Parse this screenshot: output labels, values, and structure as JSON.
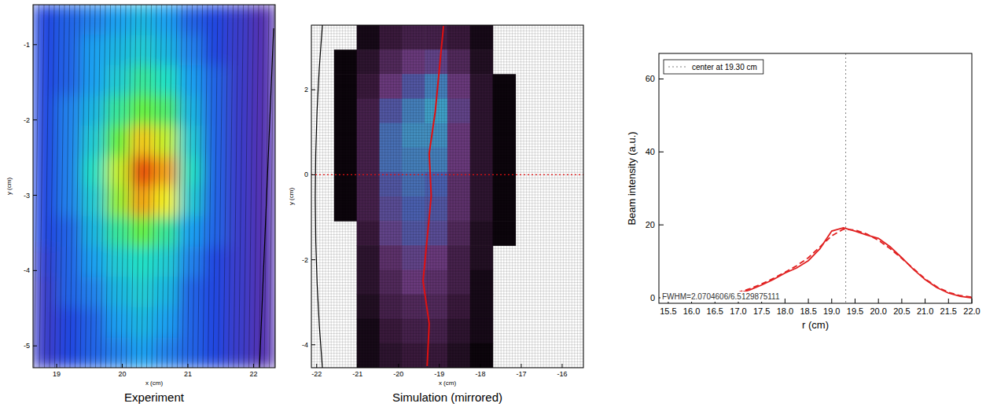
{
  "chart_data": [
    {
      "type": "heatmap",
      "caption": "Experiment",
      "x_label": "x (cm)",
      "y_label": "y (cm)",
      "xlim": [
        18.64,
        22.33
      ],
      "ylim": [
        -5.29,
        -0.47
      ],
      "xticks": [
        19,
        20,
        21,
        22
      ],
      "yticks": [
        -5,
        -4,
        -3,
        -2,
        -1
      ],
      "zlim": [
        0,
        1
      ],
      "cells": [
        [
          0.15,
          0.2,
          0.25,
          0.3,
          0.35,
          0.3,
          0.2,
          0.15,
          0.1,
          0.05
        ],
        [
          0.15,
          0.2,
          0.3,
          0.35,
          0.4,
          0.35,
          0.25,
          0.15,
          0.1,
          0.05
        ],
        [
          0.15,
          0.2,
          0.3,
          0.4,
          0.5,
          0.45,
          0.3,
          0.2,
          0.1,
          0.05
        ],
        [
          0.15,
          0.25,
          0.35,
          0.5,
          0.6,
          0.55,
          0.35,
          0.2,
          0.1,
          0.05
        ],
        [
          0.15,
          0.25,
          0.4,
          0.6,
          0.8,
          0.7,
          0.4,
          0.2,
          0.1,
          0.05
        ],
        [
          0.15,
          0.25,
          0.45,
          0.7,
          0.95,
          0.85,
          0.45,
          0.2,
          0.1,
          0.05
        ],
        [
          0.15,
          0.25,
          0.4,
          0.65,
          0.85,
          0.75,
          0.4,
          0.2,
          0.1,
          0.05
        ],
        [
          0.15,
          0.2,
          0.35,
          0.5,
          0.6,
          0.5,
          0.3,
          0.2,
          0.1,
          0.05
        ],
        [
          0.12,
          0.2,
          0.3,
          0.4,
          0.45,
          0.4,
          0.25,
          0.15,
          0.1,
          0.05
        ],
        [
          0.1,
          0.2,
          0.25,
          0.35,
          0.4,
          0.35,
          0.2,
          0.15,
          0.1,
          0.05
        ],
        [
          0.1,
          0.15,
          0.2,
          0.3,
          0.35,
          0.3,
          0.2,
          0.15,
          0.1,
          0.05
        ],
        [
          0.1,
          0.15,
          0.2,
          0.25,
          0.3,
          0.25,
          0.2,
          0.15,
          0.1,
          0.05
        ]
      ]
    },
    {
      "type": "heatmap",
      "caption": "Simulation (mirrored)",
      "x_label": "x (cm)",
      "y_label": "y (cm)",
      "xlim": [
        -22.13,
        -15.48
      ],
      "ylim": [
        -4.54,
        3.52
      ],
      "xticks": [
        -22,
        -21,
        -20,
        -19,
        -18,
        -17,
        -16
      ],
      "yticks": [
        -4,
        -2,
        0,
        2
      ],
      "zlim": [
        0,
        1
      ],
      "cells": [
        [
          null,
          null,
          0.1,
          0.25,
          0.3,
          0.3,
          0.25,
          0.1,
          null,
          null,
          null,
          null
        ],
        [
          null,
          0.05,
          0.2,
          0.35,
          0.45,
          0.5,
          0.35,
          0.15,
          null,
          null,
          null,
          null
        ],
        [
          null,
          0.05,
          0.25,
          0.45,
          0.6,
          0.75,
          0.45,
          0.2,
          0.05,
          null,
          null,
          null
        ],
        [
          null,
          0.05,
          0.3,
          0.6,
          0.75,
          0.85,
          0.5,
          0.2,
          0.05,
          null,
          null,
          null
        ],
        [
          null,
          0.05,
          0.3,
          0.7,
          0.8,
          0.8,
          0.45,
          0.2,
          0.05,
          null,
          null,
          null
        ],
        [
          null,
          0.05,
          0.3,
          0.7,
          0.75,
          0.75,
          0.45,
          0.2,
          0.05,
          null,
          null,
          null
        ],
        [
          null,
          0.05,
          0.3,
          0.6,
          0.7,
          0.65,
          0.4,
          0.2,
          0.05,
          null,
          null,
          null
        ],
        [
          null,
          0.05,
          0.3,
          0.55,
          0.65,
          0.6,
          0.4,
          0.2,
          0.05,
          null,
          null,
          null
        ],
        [
          null,
          null,
          0.25,
          0.5,
          0.6,
          0.55,
          0.35,
          0.15,
          0.05,
          null,
          null,
          null
        ],
        [
          null,
          null,
          0.2,
          0.4,
          0.5,
          0.45,
          0.3,
          0.15,
          null,
          null,
          null,
          null
        ],
        [
          null,
          null,
          0.2,
          0.35,
          0.45,
          0.4,
          0.3,
          0.1,
          null,
          null,
          null,
          null
        ],
        [
          null,
          null,
          0.15,
          0.3,
          0.35,
          0.35,
          0.25,
          0.1,
          null,
          null,
          null,
          null
        ],
        [
          null,
          null,
          0.1,
          0.25,
          0.3,
          0.3,
          0.2,
          0.1,
          null,
          null,
          null,
          null
        ],
        [
          null,
          null,
          0.1,
          0.2,
          0.25,
          0.25,
          0.15,
          0.05,
          null,
          null,
          null,
          null
        ]
      ],
      "series": [
        {
          "color": "#e01010",
          "line_style": "solid",
          "x": [
            -19.3,
            -19.25,
            -19.4,
            -19.3,
            -19.2,
            -19.25,
            -19.1,
            -19.0,
            -18.9
          ],
          "values": [
            -4.5,
            -3.5,
            -2.5,
            -1.5,
            -0.5,
            0.5,
            1.5,
            2.5,
            3.5
          ]
        },
        {
          "color": "#e01010",
          "line_style": "dotted",
          "x": [
            -22.13,
            -15.48
          ],
          "values": [
            0,
            0
          ]
        }
      ]
    },
    {
      "type": "line",
      "x_label": "r (cm)",
      "y_label": "Beam intensity (a.u.)",
      "xlim": [
        15.3,
        22.0
      ],
      "ylim": [
        -1.5,
        67
      ],
      "xticks": [
        15.5,
        {
          "value": 16,
          "label": "16.0"
        },
        16.5,
        {
          "value": 17,
          "label": "17.0"
        },
        17.5,
        {
          "value": 18,
          "label": "18.0"
        },
        18.5,
        {
          "value": 19,
          "label": "19.0"
        },
        19.5,
        {
          "value": 20,
          "label": "20.0"
        },
        20.5,
        {
          "value": 21,
          "label": "21.0"
        },
        21.5,
        {
          "value": 22,
          "label": "22.0"
        }
      ],
      "yticks": [
        0,
        20,
        40,
        60
      ],
      "x": [
        15.5,
        16.0,
        16.5,
        16.75,
        17.0,
        17.25,
        17.5,
        17.75,
        18.0,
        18.25,
        18.5,
        18.75,
        19.0,
        19.25,
        19.5,
        19.75,
        20.0,
        20.25,
        20.5,
        20.75,
        21.0,
        21.25,
        21.5,
        21.75,
        22.0
      ],
      "series": [
        {
          "color": "#e02020",
          "line_style": "solid",
          "values": [
            0,
            0,
            0.3,
            0.6,
            1.2,
            2.2,
            3.5,
            5,
            6.8,
            8.2,
            10.2,
            13.5,
            18.3,
            19.2,
            18.3,
            17.2,
            16.3,
            14,
            11,
            7.8,
            5,
            2.8,
            1.3,
            0.4,
            0
          ]
        },
        {
          "color": "#e02020",
          "line_style": "dashed",
          "values": [
            0,
            0.1,
            0.4,
            0.8,
            1.5,
            2.5,
            3.8,
            5.3,
            7,
            8.8,
            11,
            14,
            17,
            18.8,
            18.6,
            17.5,
            15.8,
            13.5,
            10.8,
            8,
            5.2,
            3,
            1.5,
            0.6,
            0.2
          ]
        }
      ],
      "reference_line": {
        "name": "center at 19.30 cm",
        "x": 19.3,
        "line_style": "dotted",
        "color": "#808080"
      },
      "annotation": "FWHM=2.0704606/6.5129875111",
      "legend": "upper left"
    }
  ]
}
